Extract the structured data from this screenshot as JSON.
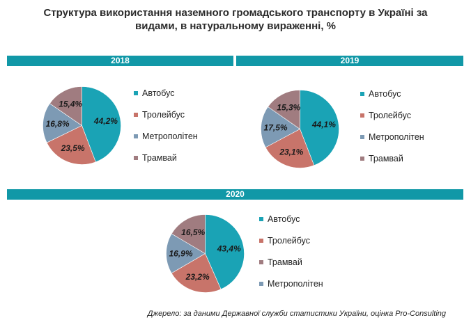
{
  "title_line1": "Структура використання наземного громадського транспорту в Україні за",
  "title_line2": "видами, в натуральному вираженні, %",
  "source": "Джерело: за даними Державної служби статистики України, оцінка Pro-Consulting",
  "colors": {
    "bar": "#1198a7",
    "Автобус": "#1aa3b5",
    "Тролейбус": "#c8746a",
    "Метрополітен": "#7d9ab4",
    "Трамвай": "#a07c80"
  },
  "chart_data": [
    {
      "type": "pie",
      "title": "2018",
      "slices": [
        {
          "name": "Автобус",
          "value": 44.2,
          "label": "44,2%"
        },
        {
          "name": "Тролейбус",
          "value": 23.5,
          "label": "23,5%"
        },
        {
          "name": "Метрополітен",
          "value": 16.8,
          "label": "16,8%"
        },
        {
          "name": "Трамвай",
          "value": 15.4,
          "label": "15,4%"
        }
      ],
      "legend": [
        "Автобус",
        "Тролейбус",
        "Метрополітен",
        "Трамвай"
      ],
      "legend_placement": "right"
    },
    {
      "type": "pie",
      "title": "2019",
      "slices": [
        {
          "name": "Автобус",
          "value": 44.1,
          "label": "44,1%"
        },
        {
          "name": "Тролейбус",
          "value": 23.1,
          "label": "23,1%"
        },
        {
          "name": "Метрополітен",
          "value": 17.5,
          "label": "17,5%"
        },
        {
          "name": "Трамвай",
          "value": 15.3,
          "label": "15,3%"
        }
      ],
      "legend": [
        "Автобус",
        "Тролейбус",
        "Метрополітен",
        "Трамвай"
      ],
      "legend_placement": "right"
    },
    {
      "type": "pie",
      "title": "2020",
      "slices": [
        {
          "name": "Автобус",
          "value": 43.4,
          "label": "43,4%"
        },
        {
          "name": "Тролейбус",
          "value": 23.2,
          "label": "23,2%"
        },
        {
          "name": "Метрополітен",
          "value": 16.9,
          "label": "16,9%"
        },
        {
          "name": "Трамвай",
          "value": 16.5,
          "label": "16,5%"
        }
      ],
      "legend": [
        "Автобус",
        "Тролейбус",
        "Трамвай",
        "Метрополітен"
      ],
      "legend_placement": "right"
    }
  ]
}
